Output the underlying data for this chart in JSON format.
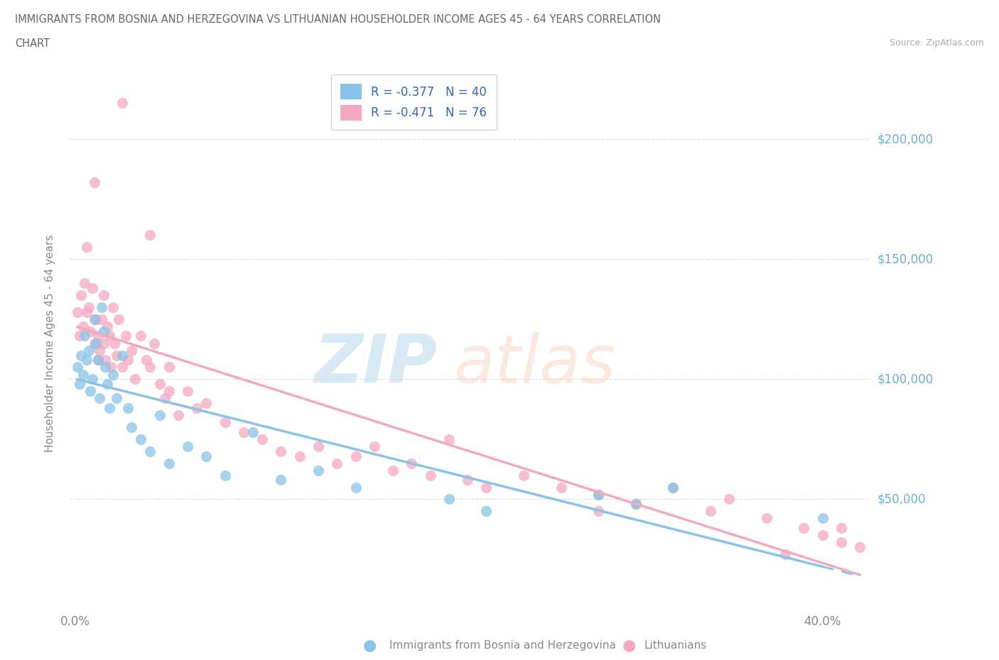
{
  "title_line1": "IMMIGRANTS FROM BOSNIA AND HERZEGOVINA VS LITHUANIAN HOUSEHOLDER INCOME AGES 45 - 64 YEARS CORRELATION",
  "title_line2": "CHART",
  "source_text": "Source: ZipAtlas.com",
  "ylabel": "Householder Income Ages 45 - 64 years",
  "xlim_min": -0.003,
  "xlim_max": 0.425,
  "ylim_min": 5000,
  "ylim_max": 225000,
  "ytick_vals": [
    50000,
    100000,
    150000,
    200000
  ],
  "ytick_labels": [
    "$50,000",
    "$100,000",
    "$150,000",
    "$200,000"
  ],
  "xtick_vals": [
    0.0,
    0.05,
    0.1,
    0.15,
    0.2,
    0.25,
    0.3,
    0.35,
    0.4
  ],
  "color_blue": "#88c4e8",
  "color_pink": "#f4a8c0",
  "color_ytick_label": "#6baed6",
  "color_title": "#666666",
  "color_grid": "#dddddd",
  "legend_text1": "R = -0.377   N = 40",
  "legend_text2": "R = -0.471   N = 76",
  "bosnia_x": [
    0.001,
    0.002,
    0.003,
    0.004,
    0.005,
    0.006,
    0.007,
    0.008,
    0.009,
    0.01,
    0.011,
    0.012,
    0.013,
    0.014,
    0.015,
    0.016,
    0.017,
    0.018,
    0.02,
    0.022,
    0.025,
    0.028,
    0.03,
    0.035,
    0.04,
    0.045,
    0.05,
    0.06,
    0.07,
    0.08,
    0.095,
    0.11,
    0.13,
    0.15,
    0.2,
    0.22,
    0.28,
    0.3,
    0.32,
    0.4
  ],
  "bosnia_y": [
    105000,
    98000,
    110000,
    102000,
    118000,
    108000,
    112000,
    95000,
    100000,
    125000,
    115000,
    108000,
    92000,
    130000,
    120000,
    105000,
    98000,
    88000,
    102000,
    92000,
    110000,
    88000,
    80000,
    75000,
    70000,
    85000,
    65000,
    72000,
    68000,
    60000,
    78000,
    58000,
    62000,
    55000,
    50000,
    45000,
    52000,
    48000,
    55000,
    42000
  ],
  "lithuanian_x": [
    0.001,
    0.002,
    0.003,
    0.004,
    0.005,
    0.006,
    0.006,
    0.007,
    0.008,
    0.009,
    0.01,
    0.011,
    0.012,
    0.012,
    0.013,
    0.014,
    0.015,
    0.015,
    0.016,
    0.017,
    0.018,
    0.019,
    0.02,
    0.021,
    0.022,
    0.023,
    0.025,
    0.027,
    0.028,
    0.03,
    0.032,
    0.035,
    0.038,
    0.04,
    0.042,
    0.045,
    0.048,
    0.05,
    0.055,
    0.06,
    0.065,
    0.07,
    0.08,
    0.09,
    0.1,
    0.11,
    0.12,
    0.13,
    0.14,
    0.15,
    0.16,
    0.17,
    0.18,
    0.19,
    0.2,
    0.21,
    0.22,
    0.24,
    0.26,
    0.28,
    0.3,
    0.32,
    0.34,
    0.35,
    0.37,
    0.39,
    0.4,
    0.41,
    0.41,
    0.42,
    0.01,
    0.025,
    0.04,
    0.05,
    0.28,
    0.38
  ],
  "lithuanian_y": [
    128000,
    118000,
    135000,
    122000,
    140000,
    155000,
    128000,
    130000,
    120000,
    138000,
    115000,
    125000,
    118000,
    108000,
    112000,
    125000,
    135000,
    115000,
    108000,
    122000,
    118000,
    105000,
    130000,
    115000,
    110000,
    125000,
    105000,
    118000,
    108000,
    112000,
    100000,
    118000,
    108000,
    105000,
    115000,
    98000,
    92000,
    105000,
    85000,
    95000,
    88000,
    90000,
    82000,
    78000,
    75000,
    70000,
    68000,
    72000,
    65000,
    68000,
    72000,
    62000,
    65000,
    60000,
    75000,
    58000,
    55000,
    60000,
    55000,
    52000,
    48000,
    55000,
    45000,
    50000,
    42000,
    38000,
    35000,
    32000,
    38000,
    30000,
    182000,
    215000,
    160000,
    95000,
    45000,
    27000
  ]
}
